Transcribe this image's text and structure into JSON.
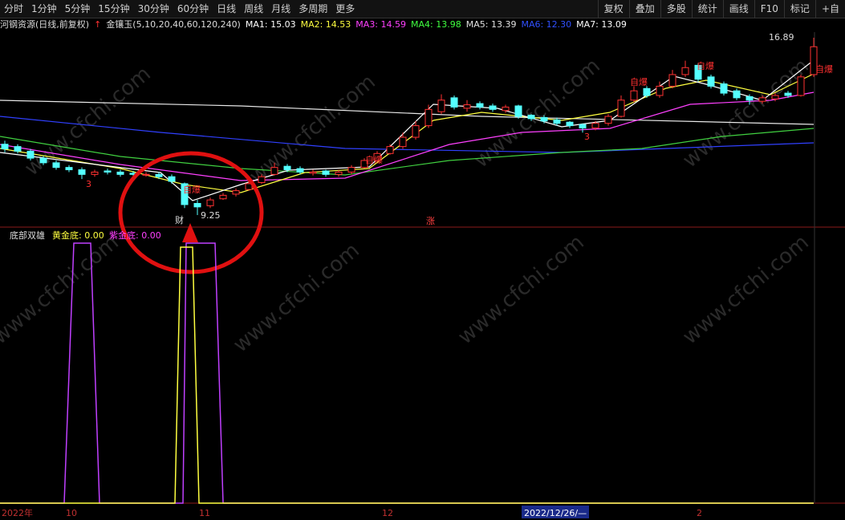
{
  "toolbar": {
    "left": [
      "分时",
      "1分钟",
      "5分钟",
      "15分钟",
      "30分钟",
      "60分钟",
      "日线",
      "周线",
      "月线",
      "多周期",
      "更多"
    ],
    "right": [
      "复权",
      "叠加",
      "多股",
      "统计",
      "画线",
      "F10",
      "标记",
      "+自"
    ]
  },
  "header": {
    "stock": "河钢资源(日线,前复权)",
    "indicator": "金镶玉(5,10,20,40,60,120,240)",
    "ma": [
      "MA1: 15.03",
      "MA2: 14.53",
      "MA3: 14.59",
      "MA4: 13.98",
      "MA5: 13.39",
      "MA6: 12.30",
      "MA7: 13.09"
    ]
  },
  "annotations": {
    "high": "16.89",
    "low": "9.25",
    "cai": "财",
    "zhang": "涨",
    "zibao": "自爆",
    "three": "3"
  },
  "lower_panel": {
    "title": "底部双雄",
    "gold": "黄金底: 0.00",
    "purple": "紫金底: 0.00"
  },
  "x_axis": [
    "2022年",
    "10",
    "11",
    "12",
    "2022/12/26/—",
    "2"
  ],
  "watermark": "www.cfchi.com",
  "chart": {
    "type": "candlestick",
    "ylim": [
      8.73,
      17.13
    ],
    "open": [
      12.3,
      12.2,
      12.0,
      11.7,
      11.5,
      11.3,
      11.2,
      11.0,
      11.15,
      11.1,
      11.05,
      11.0,
      11.0,
      10.9,
      10.6,
      9.75,
      9.65,
      9.95,
      10.15,
      10.35,
      10.65,
      11.0,
      11.35,
      11.25,
      11.05,
      11.15,
      11.0,
      11.1,
      11.3,
      11.6,
      11.9,
      12.2,
      12.6,
      13.1,
      13.7,
      14.3,
      13.85,
      14.05,
      13.95,
      13.75,
      13.95,
      13.55,
      13.45,
      13.35,
      13.25,
      13.15,
      13.0,
      13.2,
      13.5,
      14.2,
      14.7,
      14.4,
      14.8,
      15.3,
      15.7,
      15.2,
      14.9,
      14.6,
      14.35,
      14.15,
      14.25,
      14.5,
      14.4,
      15.3
    ],
    "high": [
      12.45,
      12.3,
      12.1,
      11.8,
      11.6,
      11.4,
      11.3,
      11.2,
      11.25,
      11.2,
      11.15,
      11.1,
      11.1,
      11.0,
      10.65,
      9.9,
      10.0,
      10.2,
      10.4,
      10.7,
      11.0,
      11.5,
      11.45,
      11.35,
      11.2,
      11.2,
      11.2,
      11.4,
      11.7,
      12.0,
      12.3,
      12.8,
      13.3,
      14.0,
      14.45,
      14.4,
      14.2,
      14.15,
      14.05,
      14.0,
      14.0,
      13.6,
      13.55,
      13.45,
      13.3,
      13.2,
      13.3,
      13.6,
      14.4,
      14.8,
      14.8,
      15.0,
      15.5,
      15.9,
      15.8,
      15.3,
      15.0,
      14.7,
      14.45,
      14.4,
      14.5,
      14.6,
      15.3,
      16.89
    ],
    "low": [
      11.95,
      11.9,
      11.6,
      11.4,
      11.2,
      11.1,
      10.8,
      10.9,
      11.0,
      10.9,
      10.9,
      10.9,
      10.8,
      10.6,
      9.55,
      9.25,
      9.55,
      9.9,
      10.05,
      10.3,
      10.6,
      10.95,
      11.1,
      11.0,
      10.95,
      10.9,
      10.9,
      11.0,
      11.25,
      11.55,
      11.85,
      12.1,
      12.5,
      13.0,
      13.6,
      13.8,
      13.7,
      13.8,
      13.7,
      13.65,
      13.4,
      13.3,
      13.2,
      13.1,
      13.0,
      12.8,
      12.9,
      13.1,
      13.45,
      14.1,
      14.3,
      14.3,
      14.7,
      15.2,
      15.0,
      14.7,
      14.4,
      14.2,
      14.0,
      14.05,
      14.15,
      14.3,
      14.35,
      15.2
    ],
    "close": [
      12.1,
      12.0,
      11.7,
      11.5,
      11.3,
      11.2,
      11.0,
      11.1,
      11.1,
      11.0,
      11.0,
      11.0,
      10.9,
      10.7,
      9.7,
      9.6,
      9.9,
      10.1,
      10.3,
      10.6,
      10.9,
      11.3,
      11.2,
      11.1,
      11.1,
      11.0,
      11.1,
      11.3,
      11.6,
      11.9,
      12.2,
      12.6,
      13.1,
      13.8,
      14.2,
      13.9,
      14.0,
      13.9,
      13.8,
      13.9,
      13.5,
      13.4,
      13.3,
      13.2,
      13.1,
      13.0,
      13.2,
      13.5,
      14.2,
      14.6,
      14.4,
      14.8,
      15.3,
      15.6,
      15.1,
      14.8,
      14.5,
      14.3,
      14.2,
      14.3,
      14.4,
      14.4,
      15.2,
      16.5
    ]
  }
}
